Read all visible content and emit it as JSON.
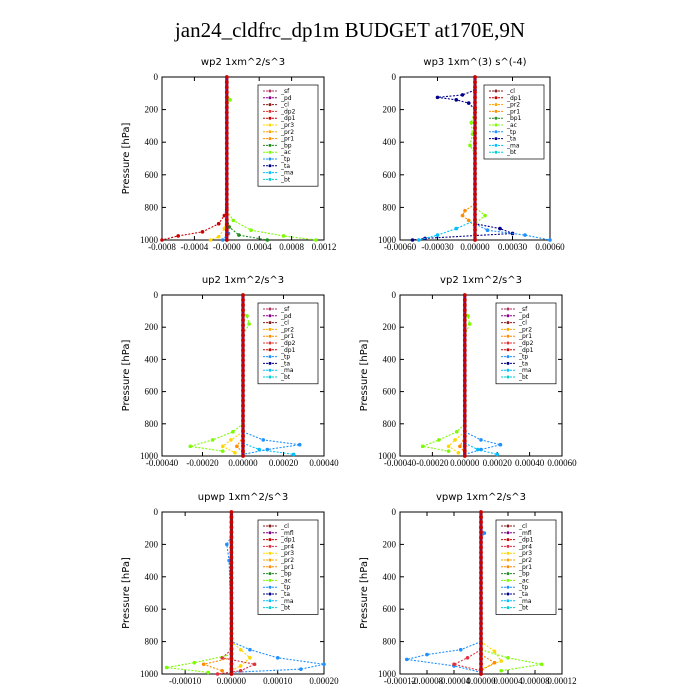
{
  "title": "jan24_cldfrc_dp1m  BUDGET at170E,9N",
  "colors": {
    "sf": "#b03060",
    "pd": "#8b008b",
    "cl": "#8b1a1a",
    "dp1": "#cc0000",
    "dp2": "#e53030",
    "pr1": "#ff8c00",
    "pr2": "#ffa500",
    "pr3": "#ffd700",
    "pr4": "#e03040",
    "bp": "#228b22",
    "ac": "#7cfc00",
    "tp": "#1e90ff",
    "ta": "#00008b",
    "ma": "#00bfff",
    "bt": "#00ced1",
    "mfl": "#800080"
  },
  "chart_data": [
    {
      "type": "line",
      "title": "wp2  1xm^2/s^3",
      "ylabel": "Pressure [hPa]",
      "xlim": [
        -0.0008,
        0.0012
      ],
      "ylim": [
        1000,
        0
      ],
      "xticks": [
        "-0.0008",
        "-0.0004",
        "-0.0000",
        "0.0004",
        "0.0008",
        "0.0012"
      ],
      "yticks": [
        "0",
        "200",
        "400",
        "600",
        "800",
        "1000"
      ],
      "legend": [
        "_sf",
        "_pd",
        "_cl",
        "_dp2",
        "_dp1",
        "_pr3",
        "_pr2",
        "_pr1",
        "_bp",
        "_ac",
        "_tp",
        "_ta",
        "_ma",
        "_bt"
      ],
      "series": [
        {
          "name": "_dp1",
          "color": "dp1",
          "p": [
            800,
            850,
            900,
            950,
            975,
            1000
          ],
          "x": [
            0,
            -3e-05,
            -0.0001,
            -0.0003,
            -0.0006,
            -0.0008
          ]
        },
        {
          "name": "_ac",
          "color": "ac",
          "p": [
            100,
            140,
            180,
            820,
            880,
            940,
            975,
            1000
          ],
          "x": [
            0,
            4e-05,
            0,
            0,
            8e-05,
            0.0003,
            0.0007,
            0.0011
          ]
        },
        {
          "name": "_bp",
          "color": "bp",
          "p": [
            850,
            920,
            970,
            1000
          ],
          "x": [
            0,
            3e-05,
            0.00015,
            0.0005
          ]
        },
        {
          "name": "_pr3",
          "color": "pr3",
          "p": [
            850,
            930,
            980,
            1000
          ],
          "x": [
            0,
            -3e-05,
            -0.0001,
            -0.0002
          ]
        },
        {
          "name": "_tp",
          "color": "tp",
          "p": [
            900,
            960,
            1000
          ],
          "x": [
            0,
            2e-05,
            -5e-05
          ]
        }
      ]
    },
    {
      "type": "line",
      "title": "wp3  1xm^(3) s^(-4)",
      "ylabel": "",
      "xlim": [
        -0.0006,
        0.0006
      ],
      "ylim": [
        1000,
        0
      ],
      "xticks": [
        "-0.00060",
        "-0.00030",
        "0.00000",
        "0.00030",
        "0.00060"
      ],
      "yticks": [
        "0",
        "200",
        "400",
        "600",
        "800",
        "1000"
      ],
      "legend": [
        "_cl",
        "_dp1",
        "_pr2",
        "_pr1",
        "_bp1",
        "_ac",
        "_tp",
        "_ta",
        "_ma",
        "_bt"
      ],
      "series": [
        {
          "name": "_ta",
          "color": "ta",
          "p": [
            80,
            110,
            125,
            140,
            160,
            200,
            900,
            930,
            960,
            990,
            1000
          ],
          "x": [
            0,
            -0.0001,
            -0.0003,
            -0.00015,
            -5e-05,
            0,
            0,
            0.0002,
            0.0003,
            -0.0004,
            -0.0005
          ]
        },
        {
          "name": "_ac",
          "color": "ac",
          "p": [
            200,
            280,
            350,
            420,
            470,
            800,
            850,
            900
          ],
          "x": [
            0,
            -3e-05,
            -2e-05,
            -4e-05,
            0,
            0,
            8e-05,
            0
          ]
        },
        {
          "name": "_pr1",
          "color": "pr1",
          "p": [
            780,
            820,
            850,
            880,
            920
          ],
          "x": [
            0,
            -8e-05,
            -0.0001,
            -5e-05,
            0
          ]
        },
        {
          "name": "_tp",
          "color": "tp",
          "p": [
            900,
            940,
            970,
            1000
          ],
          "x": [
            0,
            0.0001,
            0.0004,
            0.0006
          ]
        },
        {
          "name": "_ma",
          "color": "ma",
          "p": [
            880,
            930,
            970,
            1000
          ],
          "x": [
            0,
            -0.00015,
            -0.0003,
            -0.00045
          ]
        }
      ]
    },
    {
      "type": "line",
      "title": "up2  1xm^2/s^3",
      "ylabel": "Pressure [hPa]",
      "xlim": [
        -0.0004,
        0.0004
      ],
      "ylim": [
        1000,
        0
      ],
      "xticks": [
        "-0.00040",
        "-0.00020",
        "0.00000",
        "0.00020",
        "0.00040"
      ],
      "yticks": [
        "0",
        "200",
        "400",
        "600",
        "800",
        "1000"
      ],
      "legend": [
        "_sf",
        "_pd",
        "_cl",
        "_pr2",
        "_pr1",
        "_dp2",
        "_dp1",
        "_tp",
        "_ta",
        "_ma",
        "_bt"
      ],
      "series": [
        {
          "name": "_dp2",
          "color": "ac",
          "p": [
            100,
            130,
            180,
            250,
            800,
            850,
            900,
            940,
            970
          ],
          "x": [
            0,
            2e-05,
            3e-05,
            0,
            0,
            -5e-05,
            -0.00015,
            -0.00026,
            -0.0001
          ]
        },
        {
          "name": "_tp",
          "color": "tp",
          "p": [
            850,
            900,
            930,
            960,
            990
          ],
          "x": [
            0,
            0.0001,
            0.00028,
            0.00012,
            0
          ]
        },
        {
          "name": "_pr2",
          "color": "pr3",
          "p": [
            850,
            900,
            940,
            980
          ],
          "x": [
            0,
            -6e-05,
            -0.0001,
            -4e-05
          ]
        },
        {
          "name": "_pr1",
          "color": "pr1",
          "p": [
            880,
            940,
            980
          ],
          "x": [
            0,
            -3e-05,
            0
          ]
        },
        {
          "name": "_ma",
          "color": "ma",
          "p": [
            920,
            960,
            990
          ],
          "x": [
            0,
            8e-05,
            0.00025
          ]
        }
      ]
    },
    {
      "type": "line",
      "title": "vp2  1xm^2/s^3",
      "ylabel": "Pressure [hPa]",
      "xlim": [
        -0.0004,
        0.0006
      ],
      "ylim": [
        1000,
        0
      ],
      "xticks": [
        "-0.00040",
        "-0.00020",
        "0.00000",
        "0.00020",
        "0.00040",
        "0.00060"
      ],
      "yticks": [
        "0",
        "200",
        "400",
        "600",
        "800",
        "1000"
      ],
      "legend": [
        "_sf",
        "_pd",
        "_cl",
        "_pr2",
        "_pr1",
        "_dp2",
        "_dp1",
        "_tp",
        "_ta",
        "_ma",
        "_bt"
      ],
      "series": [
        {
          "name": "_dp2",
          "color": "ac",
          "p": [
            100,
            130,
            180,
            250,
            800,
            850,
            900,
            940,
            970
          ],
          "x": [
            0,
            2e-05,
            3e-05,
            0,
            0,
            -5e-05,
            -0.00016,
            -0.00026,
            -0.0001
          ]
        },
        {
          "name": "_tp",
          "color": "tp",
          "p": [
            850,
            900,
            930,
            960,
            990
          ],
          "x": [
            0,
            0.0001,
            0.00022,
            0.0001,
            0
          ]
        },
        {
          "name": "_pr2",
          "color": "pr3",
          "p": [
            850,
            900,
            940,
            980
          ],
          "x": [
            0,
            -6e-05,
            -0.0001,
            -4e-05
          ]
        },
        {
          "name": "_pr1",
          "color": "pr1",
          "p": [
            880,
            940,
            980
          ],
          "x": [
            0,
            -3e-05,
            0
          ]
        },
        {
          "name": "_ma",
          "color": "ma",
          "p": [
            920,
            960,
            990
          ],
          "x": [
            0,
            8e-05,
            0.0002
          ]
        }
      ]
    },
    {
      "type": "line",
      "title": "upwp  1xm^2/s^3",
      "ylabel": "Pressure [hPa]",
      "xlim": [
        -0.00015,
        0.0002
      ],
      "ylim": [
        1000,
        0
      ],
      "xticks": [
        "-0.00010",
        "0.00000",
        "0.00010",
        "0.00020"
      ],
      "yticks": [
        "0",
        "200",
        "400",
        "600",
        "800",
        "1000"
      ],
      "legend": [
        "_cl",
        "_mfl",
        "_dp1",
        "_pr4",
        "_pr3",
        "_pr2",
        "_pr1",
        "_bp",
        "_ac",
        "_tp",
        "_ta",
        "_ma",
        "_bt"
      ],
      "series": [
        {
          "name": "_tp",
          "color": "tp",
          "p": [
            150,
            200,
            300,
            800,
            850,
            900,
            940,
            970,
            990
          ],
          "x": [
            0,
            -1e-05,
            -5e-06,
            0,
            4e-05,
            0.0001,
            0.0002,
            0.00015,
            0
          ]
        },
        {
          "name": "_pr3",
          "color": "pr3",
          "p": [
            800,
            850,
            900,
            950,
            980
          ],
          "x": [
            0,
            2e-05,
            4e-05,
            2e-05,
            0
          ]
        },
        {
          "name": "_pr4",
          "color": "pr4",
          "p": [
            850,
            900,
            940,
            980,
            1000
          ],
          "x": [
            0,
            -2e-05,
            5e-05,
            2e-05,
            -3e-05
          ]
        },
        {
          "name": "_ac",
          "color": "ac",
          "p": [
            880,
            930,
            960,
            990
          ],
          "x": [
            0,
            -8e-05,
            -0.00014,
            -5e-05
          ]
        },
        {
          "name": "_pr1",
          "color": "pr1",
          "p": [
            900,
            940,
            980
          ],
          "x": [
            0,
            -6e-05,
            -2e-05
          ]
        }
      ]
    },
    {
      "type": "line",
      "title": "vpwp  1xm^2/s^3",
      "ylabel": "Pressure [hPa]",
      "xlim": [
        -0.00012,
        0.00012
      ],
      "ylim": [
        1000,
        0
      ],
      "xticks": [
        "-0.00012",
        "-0.00008",
        "-0.00004",
        "0.00000",
        "0.00004",
        "0.00008",
        "0.00012"
      ],
      "yticks": [
        "0",
        "200",
        "400",
        "600",
        "800",
        "1000"
      ],
      "legend": [
        "_cl",
        "_mfl",
        "_dp1",
        "_pr4",
        "_pr3",
        "_pr2",
        "_pr1",
        "_bp",
        "_ac",
        "_tp",
        "_ta",
        "_ma",
        "_bt"
      ],
      "series": [
        {
          "name": "_tp",
          "color": "tp",
          "p": [
            100,
            130,
            160,
            800,
            850,
            880,
            910,
            950,
            990
          ],
          "x": [
            0,
            5e-06,
            0,
            0,
            -3e-05,
            -8e-05,
            -0.00011,
            -4e-05,
            0
          ]
        },
        {
          "name": "_ac",
          "color": "ac",
          "p": [
            850,
            900,
            940,
            980
          ],
          "x": [
            0,
            4e-05,
            9e-05,
            3e-05
          ]
        },
        {
          "name": "_pr3",
          "color": "pr3",
          "p": [
            800,
            860,
            920,
            970
          ],
          "x": [
            0,
            2e-05,
            3e-05,
            0
          ]
        },
        {
          "name": "_pr4",
          "color": "pr4",
          "p": [
            850,
            900,
            940,
            980
          ],
          "x": [
            0,
            -2e-05,
            -4e-05,
            0
          ]
        },
        {
          "name": "_pr2",
          "color": "pr1",
          "p": [
            880,
            930,
            980
          ],
          "x": [
            0,
            2e-05,
            0
          ]
        }
      ]
    }
  ]
}
